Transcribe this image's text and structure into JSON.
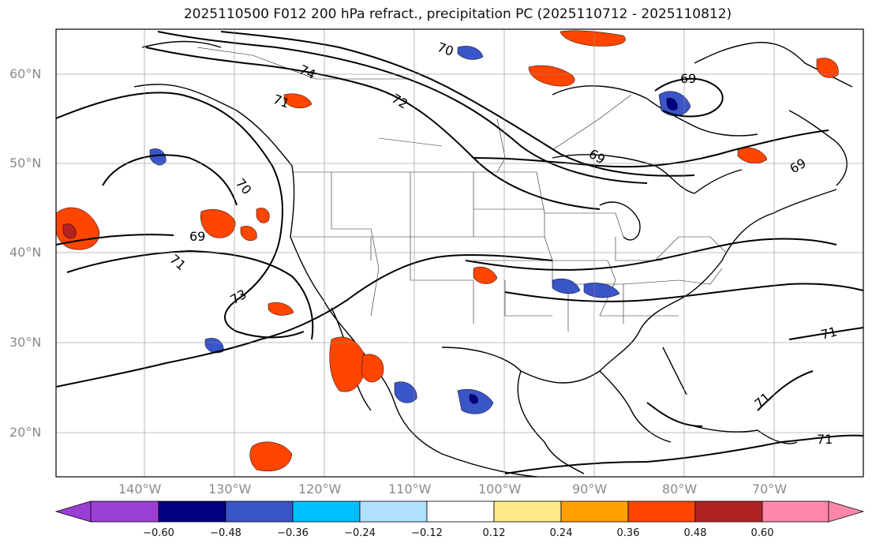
{
  "title": "2025110500 F012 200 hPa refract., precipitation PC (2025110712 - 2025110812)",
  "lat_labels": [
    "60°N",
    "50°N",
    "40°N",
    "30°N",
    "20°N"
  ],
  "lon_labels": [
    "140°W",
    "130°W",
    "120°W",
    "110°W",
    "100°W",
    "90°W",
    "80°W",
    "70°W"
  ],
  "colorbar": {
    "colors": [
      "#9b3fd4",
      "#000080",
      "#3a55c8",
      "#00bfff",
      "#b0e0ff",
      "#ffffff",
      "#ffe98a",
      "#ffa000",
      "#ff4500",
      "#b22222",
      "#ff88aa"
    ],
    "labels": [
      "−0.60",
      "−0.48",
      "−0.36",
      "−0.24",
      "−0.12",
      "0.12",
      "0.24",
      "0.36",
      "0.48",
      "0.60"
    ]
  },
  "contour_labels": [
    "74",
    "72",
    "71",
    "70",
    "69",
    "73",
    "71",
    "69",
    "70",
    "69",
    "71",
    "71",
    "69",
    "71"
  ]
}
